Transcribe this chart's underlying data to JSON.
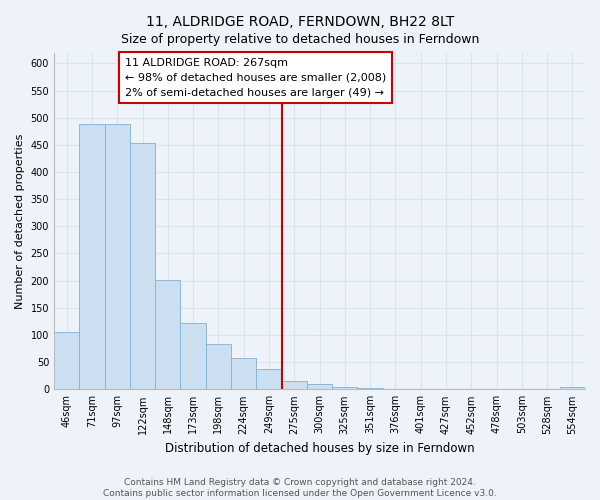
{
  "title": "11, ALDRIDGE ROAD, FERNDOWN, BH22 8LT",
  "subtitle": "Size of property relative to detached houses in Ferndown",
  "xlabel": "Distribution of detached houses by size in Ferndown",
  "ylabel": "Number of detached properties",
  "bar_labels": [
    "46sqm",
    "71sqm",
    "97sqm",
    "122sqm",
    "148sqm",
    "173sqm",
    "198sqm",
    "224sqm",
    "249sqm",
    "275sqm",
    "300sqm",
    "325sqm",
    "351sqm",
    "376sqm",
    "401sqm",
    "427sqm",
    "452sqm",
    "478sqm",
    "503sqm",
    "528sqm",
    "554sqm"
  ],
  "bar_values": [
    105,
    488,
    488,
    453,
    202,
    122,
    83,
    57,
    38,
    15,
    9,
    5,
    2,
    0,
    1,
    0,
    0,
    0,
    0,
    0,
    4
  ],
  "bar_color": "#ccdff0",
  "bar_edge_color": "#7fb0d8",
  "vline_x_index": 9,
  "vline_color": "#cc0000",
  "annotation_line1": "11 ALDRIDGE ROAD: 267sqm",
  "annotation_line2": "← 98% of detached houses are smaller (2,008)",
  "annotation_line3": "2% of semi-detached houses are larger (49) →",
  "annotation_box_color": "#ffffff",
  "annotation_box_edge_color": "#cc0000",
  "ylim": [
    0,
    620
  ],
  "yticks": [
    0,
    50,
    100,
    150,
    200,
    250,
    300,
    350,
    400,
    450,
    500,
    550,
    600
  ],
  "footnote": "Contains HM Land Registry data © Crown copyright and database right 2024.\nContains public sector information licensed under the Open Government Licence v3.0.",
  "bg_color": "#eef3fa",
  "grid_color": "#d8e4f0",
  "title_fontsize": 10,
  "subtitle_fontsize": 9,
  "xlabel_fontsize": 8.5,
  "ylabel_fontsize": 8,
  "tick_fontsize": 7,
  "annotation_fontsize": 8,
  "footnote_fontsize": 6.5
}
